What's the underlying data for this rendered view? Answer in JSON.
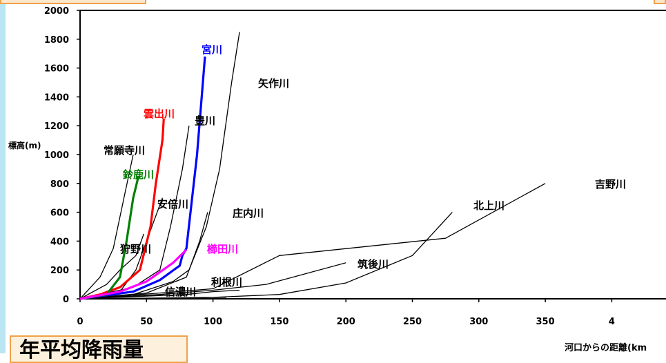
{
  "chart_data": {
    "type": "line",
    "title": "",
    "ylabel": "標高(m)",
    "xlabel": "河口からの距離(km",
    "xlim": [
      0,
      400
    ],
    "ylim": [
      0,
      2000
    ],
    "x_ticks": [
      "0",
      "50",
      "100",
      "150",
      "200",
      "250",
      "300",
      "350",
      "4"
    ],
    "y_ticks": [
      "0",
      "200",
      "400",
      "600",
      "800",
      "1000",
      "1200",
      "1400",
      "1600",
      "1800",
      "2000"
    ],
    "grid": false,
    "series": [
      {
        "name": "宮川",
        "color": "#0000ff",
        "highlight": true,
        "points": [
          [
            0,
            0
          ],
          [
            40,
            50
          ],
          [
            60,
            130
          ],
          [
            75,
            230
          ],
          [
            77,
            300
          ],
          [
            80,
            350
          ],
          [
            88,
            1000
          ],
          [
            94,
            1680
          ]
        ]
      },
      {
        "name": "矢作川",
        "color": "#000000",
        "highlight": false,
        "points": [
          [
            0,
            0
          ],
          [
            40,
            30
          ],
          [
            70,
            120
          ],
          [
            82,
            200
          ],
          [
            95,
            500
          ],
          [
            105,
            900
          ],
          [
            114,
            1500
          ],
          [
            120,
            1850
          ]
        ]
      },
      {
        "name": "雲出川",
        "color": "#ff0000",
        "highlight": true,
        "points": [
          [
            0,
            0
          ],
          [
            15,
            30
          ],
          [
            30,
            80
          ],
          [
            45,
            200
          ],
          [
            53,
            500
          ],
          [
            57,
            800
          ],
          [
            62,
            1100
          ],
          [
            63,
            1250
          ]
        ]
      },
      {
        "name": "豊川",
        "color": "#000000",
        "highlight": false,
        "points": [
          [
            0,
            0
          ],
          [
            40,
            80
          ],
          [
            60,
            200
          ],
          [
            68,
            500
          ],
          [
            77,
            900
          ],
          [
            82,
            1200
          ]
        ]
      },
      {
        "name": "常願寺川",
        "color": "#000000",
        "highlight": false,
        "points": [
          [
            0,
            0
          ],
          [
            15,
            150
          ],
          [
            25,
            350
          ],
          [
            33,
            700
          ],
          [
            40,
            1000
          ]
        ]
      },
      {
        "name": "鈴鹿川",
        "color": "#008000",
        "highlight": true,
        "points": [
          [
            0,
            0
          ],
          [
            20,
            30
          ],
          [
            30,
            150
          ],
          [
            35,
            400
          ],
          [
            40,
            700
          ],
          [
            44,
            850
          ]
        ]
      },
      {
        "name": "安倍川",
        "color": "#000000",
        "highlight": false,
        "points": [
          [
            0,
            0
          ],
          [
            30,
            50
          ],
          [
            42,
            200
          ],
          [
            52,
            450
          ],
          [
            62,
            700
          ]
        ]
      },
      {
        "name": "狩野川",
        "color": "#000000",
        "highlight": false,
        "points": [
          [
            0,
            0
          ],
          [
            20,
            100
          ],
          [
            30,
            200
          ],
          [
            42,
            300
          ],
          [
            48,
            450
          ]
        ]
      },
      {
        "name": "庄内川",
        "color": "#000000",
        "highlight": false,
        "points": [
          [
            0,
            0
          ],
          [
            50,
            40
          ],
          [
            80,
            150
          ],
          [
            90,
            400
          ],
          [
            96,
            600
          ]
        ]
      },
      {
        "name": "櫛田川",
        "color": "#ff00ff",
        "highlight": true,
        "points": [
          [
            0,
            0
          ],
          [
            30,
            50
          ],
          [
            50,
            120
          ],
          [
            70,
            250
          ],
          [
            80,
            340
          ]
        ]
      },
      {
        "name": "吉野川",
        "color": "#000000",
        "highlight": false,
        "points": [
          [
            0,
            0
          ],
          [
            60,
            40
          ],
          [
            100,
            70
          ],
          [
            150,
            300
          ],
          [
            275,
            420
          ],
          [
            350,
            800
          ]
        ]
      },
      {
        "name": "筑後川",
        "color": "#000000",
        "highlight": false,
        "points": [
          [
            0,
            0
          ],
          [
            60,
            30
          ],
          [
            100,
            60
          ],
          [
            140,
            100
          ],
          [
            200,
            250
          ]
        ]
      },
      {
        "name": "北上川",
        "color": "#000000",
        "highlight": false,
        "points": [
          [
            0,
            0
          ],
          [
            100,
            10
          ],
          [
            150,
            30
          ],
          [
            200,
            110
          ],
          [
            250,
            300
          ],
          [
            280,
            600
          ]
        ]
      },
      {
        "name": "利根川",
        "color": "#000000",
        "highlight": false,
        "points": [
          [
            0,
            0
          ],
          [
            80,
            30
          ],
          [
            100,
            50
          ],
          [
            120,
            60
          ]
        ]
      },
      {
        "name": "信濃川",
        "color": "#000000",
        "highlight": false,
        "points": [
          [
            0,
            0
          ],
          [
            70,
            5
          ],
          [
            110,
            10
          ]
        ]
      }
    ]
  },
  "banner_text": "年平均降雨量"
}
